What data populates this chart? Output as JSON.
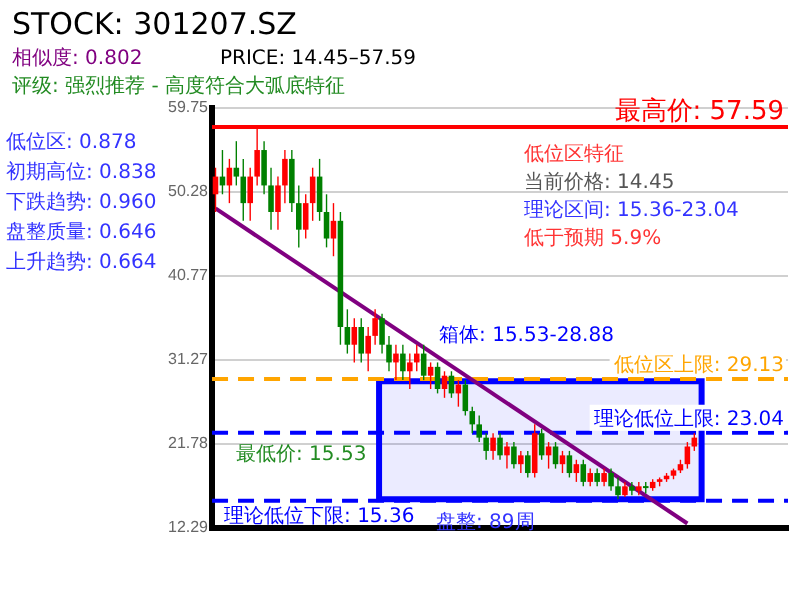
{
  "chart_data": {
    "type": "candlestick",
    "title": "STOCK: 301207.SZ",
    "categories": [
      null,
      null,
      null,
      null,
      null,
      null,
      null,
      null,
      null,
      null,
      null,
      null,
      null,
      null,
      null,
      null,
      null,
      null,
      null,
      null,
      null,
      null,
      null,
      null,
      null,
      null,
      null,
      null,
      null,
      null,
      null,
      null,
      null,
      null,
      null,
      null,
      null,
      null,
      null,
      null,
      null,
      null,
      null,
      null,
      null,
      null,
      null,
      null,
      null,
      null,
      null,
      null,
      null,
      null,
      null,
      null,
      null,
      null,
      null,
      null,
      null,
      null,
      null,
      null,
      null,
      null,
      null,
      null,
      null,
      null,
      null,
      null,
      null,
      null,
      null,
      null,
      null,
      null,
      null,
      null,
      null,
      null,
      null
    ],
    "ohlc": [
      [
        50,
        53,
        48,
        52
      ],
      [
        52,
        55,
        50,
        51
      ],
      [
        51,
        54,
        49,
        53
      ],
      [
        53,
        56,
        51,
        52
      ],
      [
        52,
        54,
        47,
        49
      ],
      [
        49,
        53,
        47,
        52
      ],
      [
        52,
        57.59,
        51,
        55
      ],
      [
        55,
        56,
        50,
        51
      ],
      [
        51,
        53,
        46,
        48
      ],
      [
        48,
        52,
        46,
        51
      ],
      [
        51,
        55,
        49,
        54
      ],
      [
        54,
        55,
        48,
        49
      ],
      [
        49,
        51,
        44,
        46
      ],
      [
        46,
        50,
        45,
        49
      ],
      [
        49,
        53,
        47,
        52
      ],
      [
        52,
        54,
        47,
        48
      ],
      [
        48,
        50,
        44,
        45
      ],
      [
        45,
        49,
        43,
        47
      ],
      [
        47,
        48,
        33,
        35
      ],
      [
        35,
        37,
        32,
        33
      ],
      [
        33,
        36,
        31,
        35
      ],
      [
        35,
        36,
        31,
        32
      ],
      [
        32,
        35,
        30,
        34
      ],
      [
        34,
        37,
        33,
        36
      ],
      [
        36,
        36.5,
        32,
        33
      ],
      [
        33,
        34,
        30,
        31
      ],
      [
        31,
        33,
        29,
        32
      ],
      [
        32,
        33,
        29,
        30
      ],
      [
        30,
        32,
        28,
        31
      ],
      [
        31,
        33,
        30,
        32
      ],
      [
        32,
        33,
        29,
        29.5
      ],
      [
        29.5,
        31,
        28,
        30.5
      ],
      [
        30.5,
        31,
        27.5,
        28
      ],
      [
        28,
        30,
        27,
        29.5
      ],
      [
        29.5,
        30,
        27,
        27.5
      ],
      [
        27.5,
        29,
        26,
        28.5
      ],
      [
        28.5,
        29,
        25,
        25.5
      ],
      [
        25.5,
        26,
        23,
        24
      ],
      [
        24,
        25,
        22,
        22.5
      ],
      [
        22.5,
        23,
        20,
        21
      ],
      [
        21,
        23,
        20,
        22.5
      ],
      [
        22.5,
        23,
        20,
        20.5
      ],
      [
        20.5,
        22,
        19,
        21.5
      ],
      [
        21.5,
        22,
        19,
        19.5
      ],
      [
        19.5,
        21,
        18.5,
        20.5
      ],
      [
        20.5,
        21,
        18,
        18.5
      ],
      [
        18.5,
        24,
        18,
        23
      ],
      [
        23,
        23.5,
        20,
        20.5
      ],
      [
        20.5,
        22,
        19,
        21.5
      ],
      [
        21.5,
        22,
        19,
        19.5
      ],
      [
        19.5,
        21,
        18.5,
        20.5
      ],
      [
        20.5,
        21,
        18,
        18.5
      ],
      [
        18.5,
        20,
        17.5,
        19.5
      ],
      [
        19.5,
        20,
        17,
        17.5
      ],
      [
        17.5,
        19,
        17,
        18.5
      ],
      [
        18.5,
        19,
        17,
        17.5
      ],
      [
        17.5,
        19,
        17,
        18.5
      ],
      [
        18.5,
        19,
        16.5,
        17
      ],
      [
        17,
        18,
        15.53,
        16
      ],
      [
        16,
        17.5,
        15.8,
        17
      ],
      [
        17,
        17.5,
        16,
        16.5
      ],
      [
        16.5,
        17.5,
        16,
        17
      ],
      [
        17,
        17.5,
        16.2,
        16.8
      ],
      [
        16.8,
        17.8,
        16.5,
        17.5
      ],
      [
        17.5,
        18,
        17,
        17.8
      ],
      [
        17.8,
        18.5,
        17.5,
        18.2
      ],
      [
        18.2,
        19,
        17.8,
        18.8
      ],
      [
        18.8,
        20,
        18.5,
        19.5
      ],
      [
        19.5,
        22,
        19,
        21.5
      ],
      [
        21.5,
        23,
        21,
        22.5
      ],
      null,
      null,
      null,
      null,
      null,
      null,
      null,
      null,
      null,
      null,
      null,
      null,
      null
    ],
    "series": [
      {
        "type": "line",
        "color": "#800080",
        "values": [
          48.4,
          null,
          null,
          null,
          null,
          null,
          null,
          null,
          null,
          null,
          null,
          null,
          null,
          null,
          null,
          null,
          null,
          null,
          null,
          null,
          null,
          null,
          null,
          null,
          null,
          null,
          null,
          null,
          null,
          null,
          null,
          null,
          null,
          null,
          null,
          null,
          null,
          null,
          null,
          null,
          null,
          null,
          null,
          null,
          null,
          null,
          null,
          null,
          null,
          null,
          null,
          null,
          null,
          null,
          null,
          null,
          null,
          null,
          null,
          null,
          null,
          null,
          null,
          null,
          null,
          null,
          null,
          null,
          12.8,
          null,
          null,
          null,
          null,
          null,
          null,
          null,
          null,
          null,
          null,
          null,
          null,
          null,
          null
        ]
      }
    ],
    "ylim": [
      12.29,
      59.75
    ],
    "yticks": [
      12.29,
      21.78,
      31.27,
      40.77,
      50.28,
      59.75
    ],
    "grid": "y",
    "tick_labels": "y",
    "legend": false,
    "ref_lines": [
      {
        "axis": "y",
        "value": 57.59,
        "label": "最高价: 57.59",
        "color": "#ff0000",
        "line_style": "solid"
      },
      {
        "axis": "y",
        "value": 29.13,
        "label": "低位区上限: 29.13",
        "color": "#ffa500",
        "line_style": "dashed"
      },
      {
        "axis": "y",
        "value": 23.04,
        "label": "理论低位上限: 23.04",
        "color": "#0000ff",
        "line_style": "dashed"
      },
      {
        "axis": "y",
        "value": 15.36,
        "label": "理论低位下限: 15.36",
        "color": "#0000ff",
        "line_style": "dashed"
      }
    ],
    "bands": [
      {
        "axis": "y",
        "from": 15.53,
        "to": 28.88,
        "label": "箱体: 15.53-28.88",
        "color": "#0000ff"
      }
    ],
    "annotations": [
      "相似度: 0.802",
      "PRICE: 14.45–57.59",
      "评级: 强烈推荐 - 高度符合大弧底特征",
      "低位区: 0.878",
      "初期高位: 0.838",
      "下跌趋势: 0.960",
      "盘整质量: 0.646",
      "上升趋势: 0.664",
      "低位区特征",
      "当前价格: 14.45",
      "理论区间: 15.36-23.04",
      "低于预期 5.9%",
      "最低价: 15.53",
      "盘整: 89周"
    ]
  }
}
